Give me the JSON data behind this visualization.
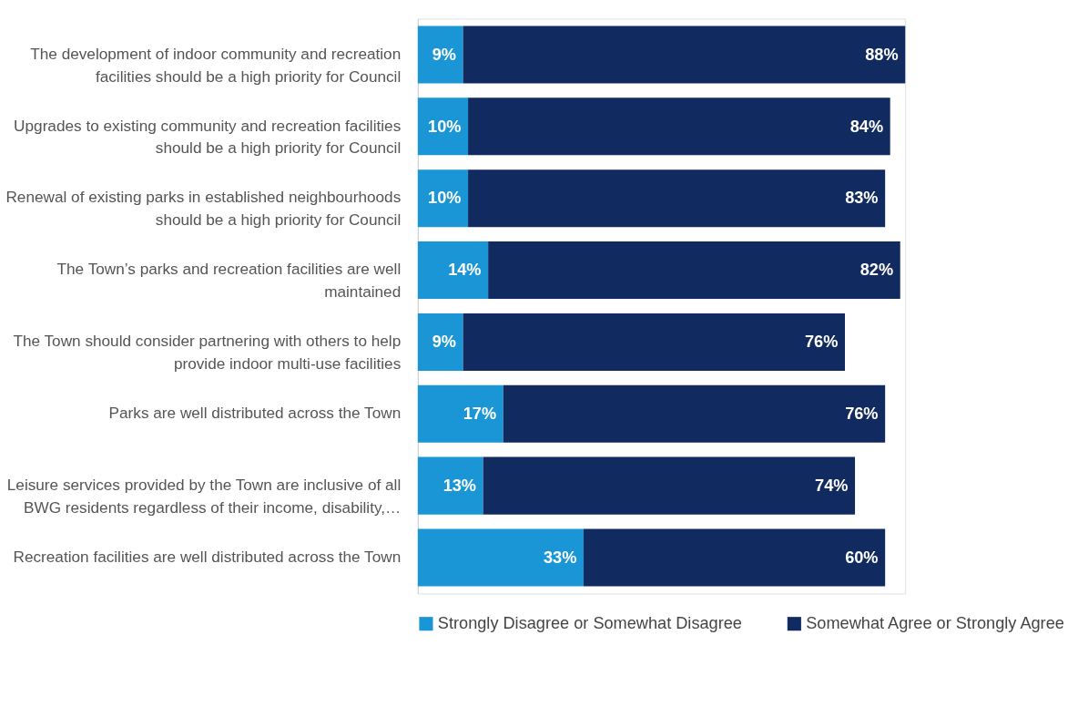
{
  "chart_data": {
    "type": "bar",
    "orientation": "horizontal",
    "stacked": true,
    "legend": "bottom",
    "categories": [
      "The development of indoor community and recreation facilities should be a high priority for Council",
      "Upgrades to existing community and recreation facilities should be a high priority for Council",
      "Renewal of existing parks in established neighbourhoods should be a high priority for Council",
      "The Town’s parks and recreation facilities are well maintained",
      "The Town should consider partnering with others to help provide indoor multi-use facilities",
      "Parks are well distributed across the Town",
      "Leisure services provided by the Town are inclusive of all BWG residents regardless of their income, disability,…",
      "Recreation facilities are well distributed across the Town"
    ],
    "series": [
      {
        "name": "Strongly Disagree or Somewhat Disagree",
        "color": "#1a96d6",
        "values": [
          9,
          10,
          10,
          14,
          9,
          17,
          13,
          33
        ],
        "value_labels": [
          "9%",
          "10%",
          "10%",
          "14%",
          "9%",
          "17%",
          "13%",
          "33%"
        ]
      },
      {
        "name": "Somewhat Agree or Strongly Agree",
        "color": "#112b60",
        "values": [
          88,
          84,
          83,
          82,
          76,
          76,
          74,
          60
        ],
        "value_labels": [
          "88%",
          "84%",
          "83%",
          "82%",
          "76%",
          "76%",
          "74%",
          "60%"
        ]
      }
    ]
  }
}
